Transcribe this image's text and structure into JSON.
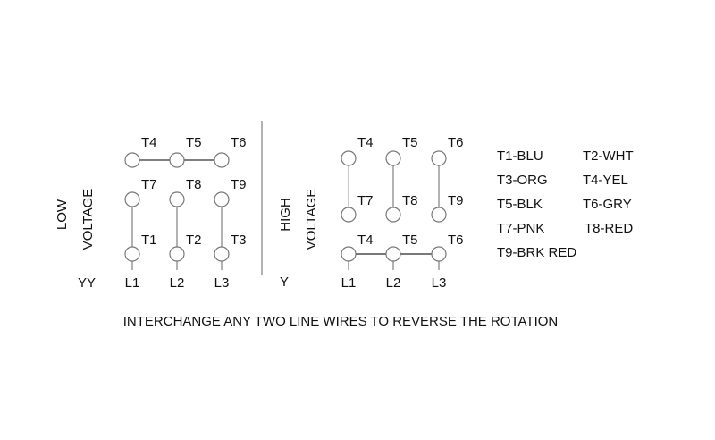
{
  "low": {
    "title_1": "LOW",
    "title_2": "VOLTAGE",
    "connection": "YY",
    "rows": [
      [
        "T4",
        "T5",
        "T6"
      ],
      [
        "T7",
        "T8",
        "T9"
      ],
      [
        "T1",
        "T2",
        "T3"
      ]
    ],
    "lines": [
      "L1",
      "L2",
      "L3"
    ]
  },
  "high": {
    "title_1": "HIGH",
    "title_2": "VOLTAGE",
    "connection": "Y",
    "rows": [
      [
        "T4",
        "T5",
        "T6"
      ],
      [
        "T7",
        "T8",
        "T9"
      ],
      [
        "T4",
        "T5",
        "T6"
      ]
    ],
    "lines": [
      "L1",
      "L2",
      "L3"
    ]
  },
  "legend": [
    [
      "T1-BLU",
      "T2-WHT"
    ],
    [
      "T3-ORG",
      "T4-YEL"
    ],
    [
      "T5-BLK",
      "T6-GRY"
    ],
    [
      "T7-PNK",
      "T8-RED"
    ],
    [
      "T9-BRK RED",
      ""
    ]
  ],
  "note": "INTERCHANGE ANY TWO LINE WIRES TO REVERSE THE ROTATION",
  "colors": {
    "line": "#999999",
    "circle_stroke": "#777777",
    "text": "#111111"
  }
}
